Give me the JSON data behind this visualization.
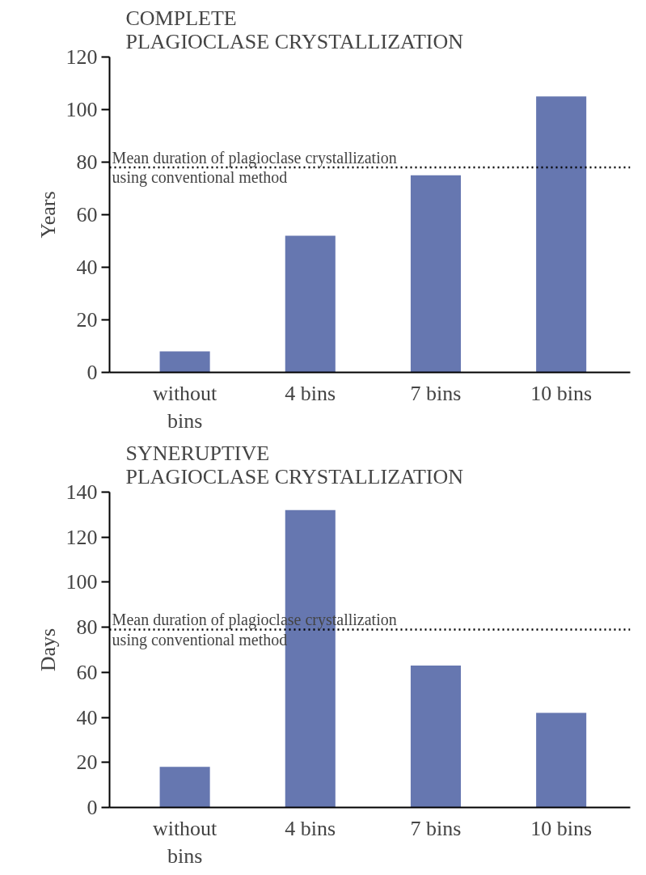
{
  "chart_data": [
    {
      "type": "bar",
      "title": "COMPLETE\nPLAGIOCLASE CRYSTALLIZATION",
      "ylabel": "Years",
      "categories": [
        "without bins",
        "4 bins",
        "7 bins",
        "10 bins"
      ],
      "values": [
        8,
        52,
        75,
        105
      ],
      "color": "#6677b0",
      "ylim": [
        0,
        120
      ],
      "yticks": [
        0,
        20,
        40,
        60,
        80,
        100,
        120
      ],
      "grid": false,
      "ref_lines": [
        {
          "axis": "y",
          "value": 78,
          "label": "Mean duration of plagioclase crystallization\nusing conventional method",
          "line_style": "dotted",
          "color": "#000000"
        }
      ]
    },
    {
      "type": "bar",
      "title": "SYNERUPTIVE\nPLAGIOCLASE CRYSTALLIZATION",
      "ylabel": "Days",
      "categories": [
        "without bins",
        "4 bins",
        "7 bins",
        "10 bins"
      ],
      "values": [
        18,
        132,
        63,
        42
      ],
      "color": "#6677b0",
      "ylim": [
        0,
        140
      ],
      "yticks": [
        0,
        20,
        40,
        60,
        80,
        100,
        120,
        140
      ],
      "grid": false,
      "ref_lines": [
        {
          "axis": "y",
          "value": 79,
          "label": "Mean duration of plagioclase crystallization\nusing conventional method",
          "line_style": "dotted",
          "color": "#000000"
        }
      ]
    }
  ]
}
